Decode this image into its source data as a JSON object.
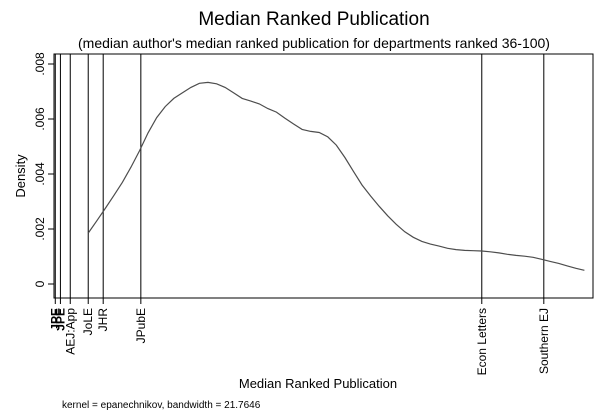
{
  "chart_data": {
    "type": "line",
    "title": "Median Ranked Publication",
    "subtitle": "(median author's median ranked publication for departments ranked 36-100)",
    "xlabel": "Median Ranked Publication",
    "ylabel": "Density",
    "note": "kernel = epanechnikov, bandwidth = 21.7646",
    "xlim": [
      0,
      126
    ],
    "ylim": [
      0,
      0.008
    ],
    "y_ticks": [
      {
        "value": 0,
        "label": "0"
      },
      {
        "value": 0.002,
        "label": ".002"
      },
      {
        "value": 0.004,
        "label": ".004"
      },
      {
        "value": 0.006,
        "label": ".006"
      },
      {
        "value": 0.008,
        "label": ".008"
      }
    ],
    "reference_lines": [
      {
        "x": 0.3,
        "label": "JPE",
        "bold": true
      },
      {
        "x": 1.5,
        "label": "JPE",
        "bold": true
      },
      {
        "x": 3.8,
        "label": "AEJ:App",
        "bold": false
      },
      {
        "x": 8.0,
        "label": "JoLE",
        "bold": false
      },
      {
        "x": 11.5,
        "label": "JHR",
        "bold": false
      },
      {
        "x": 20.3,
        "label": "JPubE",
        "bold": false
      },
      {
        "x": 100.0,
        "label": "Econ Letters",
        "bold": false
      },
      {
        "x": 114.5,
        "label": "Southern EJ",
        "bold": false
      }
    ],
    "series": [
      {
        "x": [
          8,
          10,
          12,
          14,
          16,
          18,
          20,
          22,
          24,
          26,
          28,
          30,
          32,
          34,
          36,
          38,
          40,
          42,
          44,
          46,
          48,
          50,
          52,
          54,
          56,
          58,
          60,
          62,
          64,
          66,
          68,
          70,
          72,
          74,
          76,
          78,
          80,
          82,
          84,
          86,
          88,
          90,
          92,
          94,
          96,
          98,
          100,
          102,
          104,
          106,
          108,
          110,
          112,
          114,
          116,
          118,
          120,
          122,
          124
        ],
        "values": [
          0.00185,
          0.0023,
          0.00275,
          0.00322,
          0.0037,
          0.00425,
          0.00485,
          0.0055,
          0.00605,
          0.00645,
          0.00675,
          0.00695,
          0.00715,
          0.0073,
          0.00733,
          0.00728,
          0.00715,
          0.00695,
          0.00675,
          0.00665,
          0.00655,
          0.00638,
          0.00625,
          0.00603,
          0.00582,
          0.00562,
          0.00555,
          0.00551,
          0.00535,
          0.00505,
          0.0046,
          0.0041,
          0.0036,
          0.0032,
          0.00283,
          0.00248,
          0.00217,
          0.0019,
          0.0017,
          0.00155,
          0.00145,
          0.00138,
          0.0013,
          0.00125,
          0.00122,
          0.00121,
          0.0012,
          0.00117,
          0.00113,
          0.00108,
          0.00104,
          0.00101,
          0.00097,
          0.0009,
          0.00082,
          0.00075,
          0.00066,
          0.00057,
          0.0005
        ]
      }
    ],
    "grid": false,
    "line_color": "#4d4d4d",
    "frame_color": "#000000"
  }
}
